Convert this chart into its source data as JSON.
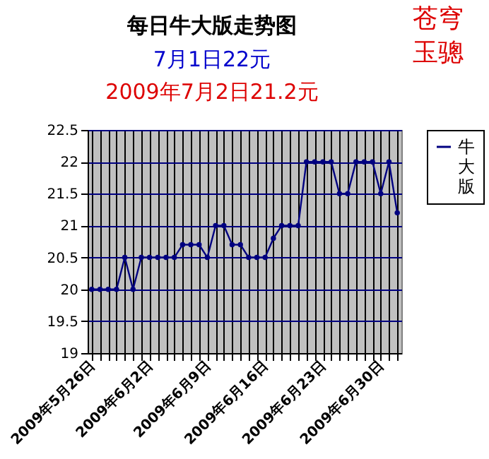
{
  "chart_data": {
    "type": "line",
    "title": "每日牛大版走势图",
    "subtitle": "7月1日22元",
    "annotations": [
      "2009年7月2日21.2元",
      "苍穹",
      "玉骢"
    ],
    "categories": [
      "2009年5月26日",
      null,
      null,
      null,
      null,
      null,
      null,
      "2009年6月2日",
      null,
      null,
      null,
      null,
      null,
      null,
      "2009年6月9日",
      null,
      null,
      null,
      null,
      null,
      null,
      "2009年6月16日",
      null,
      null,
      null,
      null,
      null,
      null,
      "2009年6月23日",
      null,
      null,
      null,
      null,
      null,
      null,
      "2009年6月30日",
      null,
      null
    ],
    "series": [
      {
        "name": "牛大版",
        "color": "#000080",
        "values": [
          20,
          20,
          20,
          20,
          20.5,
          20,
          20.5,
          20.5,
          20.5,
          20.5,
          20.5,
          20.7,
          20.7,
          20.7,
          20.5,
          21,
          21,
          20.7,
          20.7,
          20.5,
          20.5,
          20.5,
          20.8,
          21,
          21,
          21,
          22,
          22,
          22,
          22,
          21.5,
          21.5,
          22,
          22,
          22,
          21.5,
          22,
          21.2
        ]
      }
    ],
    "ylim": [
      19,
      22.5
    ],
    "yticks": [
      19,
      19.5,
      20,
      20.5,
      21,
      21.5,
      22,
      22.5
    ],
    "grid": true,
    "legend": "right",
    "marker": "circle",
    "line_style": "solid"
  }
}
